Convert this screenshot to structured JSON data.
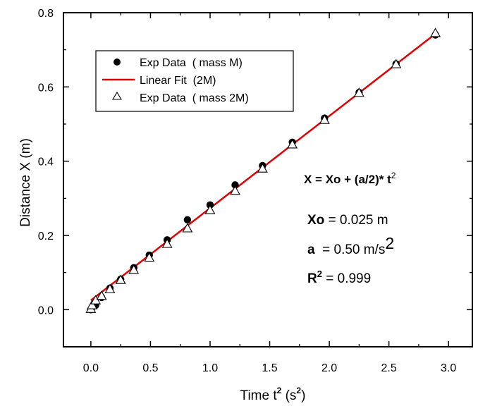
{
  "chart_data": {
    "type": "scatter",
    "xlabel": {
      "base": "Time t",
      "exp": "2",
      "unit_open": " (s",
      "unit_exp": "2",
      "unit_close": ")"
    },
    "ylabel": "Distance X (m)",
    "xlim": [
      -0.23,
      3.2
    ],
    "ylim": [
      -0.1,
      0.8
    ],
    "xticks": [
      0.0,
      0.5,
      1.0,
      1.5,
      2.0,
      2.5,
      3.0
    ],
    "xtick_labels": [
      "0.0",
      "0.5",
      "1.0",
      "1.5",
      "2.0",
      "2.5",
      "3.0"
    ],
    "yticks": [
      0.0,
      0.2,
      0.4,
      0.6,
      0.8
    ],
    "ytick_labels": [
      "0.0",
      "0.2",
      "0.4",
      "0.6",
      "0.8"
    ],
    "grid": false,
    "legend_position": "top-left",
    "series": [
      {
        "name": "Exp Data  ( mass M)",
        "kind": "filled-circle",
        "color": "#000000",
        "x": [
          0.0,
          0.01,
          0.04,
          0.09,
          0.16,
          0.25,
          0.36,
          0.49,
          0.64,
          0.81,
          1.0,
          1.21,
          1.44,
          1.69,
          1.96,
          2.25,
          2.56,
          2.89
        ],
        "y": [
          0.0,
          0.006,
          0.012,
          0.033,
          0.058,
          0.082,
          0.113,
          0.147,
          0.188,
          0.242,
          0.282,
          0.336,
          0.388,
          0.451,
          0.516,
          0.585,
          0.662,
          0.74
        ]
      },
      {
        "name": "Linear Fit  (2M)",
        "kind": "line",
        "color": "#e00000",
        "x": [
          0.0,
          2.91
        ],
        "y": [
          0.025,
          0.748
        ]
      },
      {
        "name": "Exp Data  ( mass 2M)",
        "kind": "open-triangle",
        "color": "#000000",
        "x": [
          0.0,
          0.01,
          0.04,
          0.09,
          0.16,
          0.25,
          0.36,
          0.49,
          0.64,
          0.81,
          1.0,
          1.21,
          1.44,
          1.69,
          1.96,
          2.25,
          2.56,
          2.89
        ],
        "y": [
          0.002,
          0.012,
          0.025,
          0.037,
          0.055,
          0.08,
          0.107,
          0.14,
          0.177,
          0.219,
          0.268,
          0.32,
          0.38,
          0.445,
          0.511,
          0.584,
          0.661,
          0.745
        ]
      }
    ],
    "annotations": {
      "equation": {
        "lhs": "X = Xo + (a/2)* t",
        "exp": "2"
      },
      "xo": {
        "label": "Xo",
        "value": " = 0.025 m"
      },
      "a": {
        "label": "a",
        "value": "  = 0.50 m/s",
        "exp": "2"
      },
      "r2": {
        "label": "R",
        "exp": "2",
        "value": " = 0.999"
      }
    }
  }
}
